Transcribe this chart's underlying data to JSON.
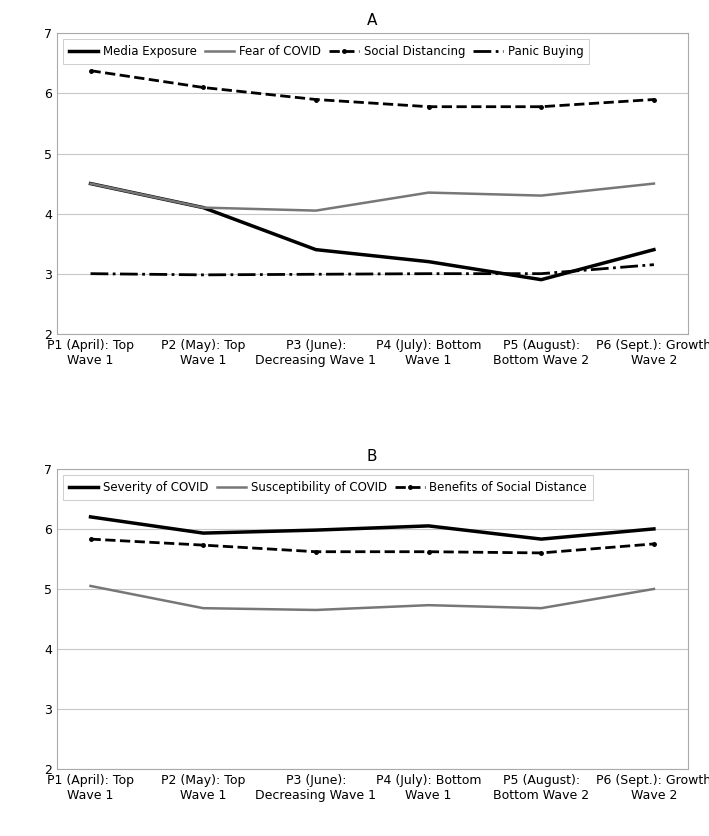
{
  "x_labels": [
    "P1 (April): Top\nWave 1",
    "P2 (May): Top\nWave 1",
    "P3 (June):\nDecreasing Wave 1",
    "P4 (July): Bottom\nWave 1",
    "P5 (August):\nBottom Wave 2",
    "P6 (Sept.): Growth\nWave 2"
  ],
  "panel_A": {
    "title": "A",
    "ylim": [
      2,
      7
    ],
    "yticks": [
      2,
      3,
      4,
      5,
      6,
      7
    ],
    "series": [
      {
        "label": "Media Exposure",
        "values": [
          4.5,
          4.1,
          3.4,
          3.2,
          2.9,
          3.4
        ],
        "color": "#000000",
        "linestyle": "-",
        "linewidth": 2.5,
        "marker": null,
        "dashes": null
      },
      {
        "label": "Fear of COVID",
        "values": [
          4.5,
          4.1,
          4.05,
          4.35,
          4.3,
          4.5
        ],
        "color": "#777777",
        "linestyle": "-",
        "linewidth": 1.8,
        "marker": null,
        "dashes": null
      },
      {
        "label": "Social Distancing",
        "values": [
          6.38,
          6.1,
          5.9,
          5.78,
          5.78,
          5.9
        ],
        "color": "#000000",
        "linestyle": "--",
        "linewidth": 2.0,
        "marker": ".",
        "markersize": 5,
        "dashes": [
          6,
          3
        ]
      },
      {
        "label": "Panic Buying",
        "values": [
          3.0,
          2.98,
          2.99,
          3.0,
          3.0,
          3.15
        ],
        "color": "#000000",
        "linestyle": "-.",
        "linewidth": 2.0,
        "marker": null,
        "dashes": null
      }
    ]
  },
  "panel_B": {
    "title": "B",
    "ylim": [
      2,
      7
    ],
    "yticks": [
      2,
      3,
      4,
      5,
      6,
      7
    ],
    "series": [
      {
        "label": "Severity of COVID",
        "values": [
          6.2,
          5.93,
          5.98,
          6.05,
          5.83,
          6.0
        ],
        "color": "#000000",
        "linestyle": "-",
        "linewidth": 2.5,
        "marker": null,
        "dashes": null
      },
      {
        "label": "Susceptibility of COVID",
        "values": [
          5.05,
          4.68,
          4.65,
          4.73,
          4.68,
          5.0
        ],
        "color": "#777777",
        "linestyle": "-",
        "linewidth": 1.8,
        "marker": null,
        "dashes": null
      },
      {
        "label": "Benefits of Social Distance",
        "values": [
          5.83,
          5.73,
          5.62,
          5.62,
          5.6,
          5.75
        ],
        "color": "#000000",
        "linestyle": "--",
        "linewidth": 2.0,
        "marker": ".",
        "markersize": 5,
        "dashes": [
          6,
          3
        ]
      }
    ]
  },
  "background_color": "#ffffff",
  "grid_color": "#c8c8c8",
  "text_color": "#000000",
  "legend_A_ncol": 4,
  "legend_B_ncol": 3,
  "tick_fontsize": 9,
  "title_fontsize": 11,
  "legend_fontsize": 8.5
}
